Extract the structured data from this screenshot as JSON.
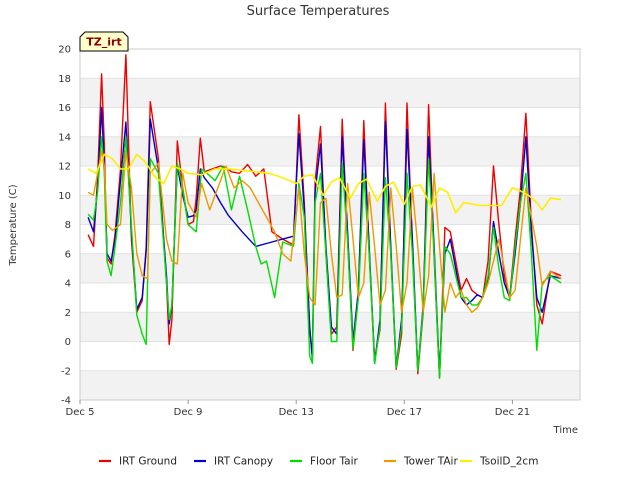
{
  "chart_data": {
    "type": "line",
    "title": "Surface Temperatures",
    "xlabel": "Time",
    "ylabel": "Temperature (C)",
    "site_label": "TZ_irt",
    "xlim": [
      5,
      23.5
    ],
    "ylim": [
      -4,
      20
    ],
    "x_ticks": [
      5,
      9,
      13,
      17,
      21
    ],
    "x_tick_labels": [
      "Dec 5",
      "Dec 9",
      "Dec 13",
      "Dec 17",
      "Dec 21"
    ],
    "y_ticks": [
      -4,
      -2,
      0,
      2,
      4,
      6,
      8,
      10,
      12,
      14,
      16,
      18,
      20
    ],
    "grid": true,
    "legend_position": "bottom",
    "series": [
      {
        "name": "IRT Ground",
        "color": "#ee0000",
        "x": [
          5.3,
          5.5,
          5.65,
          5.8,
          5.9,
          6.0,
          6.15,
          6.3,
          6.5,
          6.7,
          6.9,
          7.1,
          7.3,
          7.45,
          7.6,
          7.9,
          8.2,
          8.3,
          8.4,
          8.6,
          8.8,
          9.0,
          9.2,
          9.3,
          9.45,
          9.6,
          9.9,
          10.2,
          10.4,
          10.6,
          10.9,
          11.2,
          11.5,
          11.8,
          12.1,
          12.5,
          12.9,
          13.1,
          13.3,
          13.5,
          13.6,
          13.7,
          13.9,
          14.1,
          14.3,
          14.5,
          14.7,
          14.9,
          15.1,
          15.3,
          15.5,
          15.7,
          15.9,
          16.1,
          16.3,
          16.5,
          16.7,
          16.9,
          17.1,
          17.3,
          17.5,
          17.7,
          17.9,
          18.1,
          18.3,
          18.5,
          18.7,
          18.9,
          19.1,
          19.3,
          19.5,
          19.7,
          19.9,
          20.1,
          20.3,
          20.5,
          20.7,
          20.9,
          21.1,
          21.3,
          21.5,
          21.7,
          21.9,
          22.1,
          22.4,
          22.8
        ],
        "y": [
          7.3,
          6.5,
          11.2,
          18.3,
          13.5,
          5.7,
          5.3,
          7.4,
          11.8,
          19.6,
          7.0,
          2.0,
          2.8,
          6.5,
          16.4,
          12.5,
          4.0,
          -0.2,
          1.5,
          13.7,
          10.5,
          8.0,
          8.2,
          9.8,
          13.9,
          11.6,
          11.8,
          12.0,
          11.9,
          11.6,
          11.5,
          12.1,
          11.3,
          11.8,
          7.5,
          7.0,
          6.6,
          15.5,
          9.5,
          0.8,
          -1.0,
          10.9,
          14.7,
          6.0,
          0.5,
          1.0,
          15.2,
          7.0,
          -0.6,
          3.2,
          15.1,
          6.0,
          -1.2,
          0.8,
          16.3,
          6.0,
          -1.9,
          0.5,
          16.3,
          6.5,
          -2.2,
          2.0,
          16.2,
          5.8,
          -2.5,
          7.8,
          7.5,
          5.5,
          3.5,
          4.3,
          3.5,
          3.2,
          3.0,
          5.5,
          12.0,
          8.0,
          4.5,
          3.0,
          7.0,
          10.5,
          15.6,
          8.0,
          2.5,
          1.2,
          4.8,
          4.5
        ]
      },
      {
        "name": "IRT Canopy",
        "color": "#0000cc",
        "x": [
          5.3,
          5.5,
          5.65,
          5.8,
          5.9,
          6.0,
          6.15,
          6.3,
          6.5,
          6.7,
          6.9,
          7.1,
          7.3,
          7.45,
          7.6,
          7.9,
          8.2,
          8.3,
          8.4,
          8.6,
          8.8,
          9.0,
          9.2,
          9.3,
          9.45,
          9.6,
          9.9,
          10.2,
          10.5,
          11.0,
          11.5,
          12.1,
          12.5,
          12.9,
          13.1,
          13.3,
          13.5,
          13.6,
          13.7,
          13.9,
          14.1,
          14.3,
          14.5,
          14.7,
          14.9,
          15.1,
          15.3,
          15.5,
          15.7,
          15.9,
          16.1,
          16.3,
          16.5,
          16.7,
          16.9,
          17.1,
          17.3,
          17.5,
          17.7,
          17.9,
          18.1,
          18.3,
          18.5,
          18.7,
          18.9,
          19.1,
          19.3,
          19.5,
          19.7,
          19.9,
          20.1,
          20.3,
          20.5,
          20.7,
          20.9,
          21.1,
          21.3,
          21.5,
          21.7,
          21.9,
          22.1,
          22.4,
          22.8
        ],
        "y": [
          8.5,
          7.5,
          10.5,
          16.0,
          12.0,
          6.0,
          5.5,
          7.0,
          11.0,
          15.0,
          7.5,
          2.2,
          3.0,
          6.2,
          15.2,
          11.8,
          4.5,
          1.2,
          2.5,
          12.0,
          10.0,
          8.5,
          8.6,
          9.0,
          11.8,
          11.2,
          10.5,
          9.5,
          8.6,
          7.5,
          6.5,
          6.8,
          7.0,
          7.2,
          14.2,
          9.0,
          1.0,
          -1.2,
          10.2,
          13.5,
          6.5,
          1.0,
          0.5,
          14.0,
          7.5,
          0.0,
          3.5,
          13.8,
          6.5,
          -1.5,
          1.5,
          15.0,
          6.5,
          -1.8,
          1.5,
          14.5,
          7.0,
          -2.0,
          2.5,
          14.0,
          6.5,
          -2.3,
          6.0,
          7.0,
          5.0,
          3.0,
          2.5,
          2.8,
          3.2,
          3.0,
          4.2,
          8.2,
          6.0,
          4.0,
          3.0,
          6.0,
          9.5,
          14.0,
          7.5,
          3.0,
          2.0,
          4.5,
          4.3
        ]
      },
      {
        "name": "Floor Tair",
        "color": "#00dd00",
        "x": [
          5.3,
          5.5,
          5.65,
          5.8,
          5.9,
          6.0,
          6.15,
          6.3,
          6.5,
          6.7,
          6.9,
          7.1,
          7.3,
          7.45,
          7.6,
          7.9,
          8.2,
          8.3,
          8.4,
          8.6,
          8.8,
          9.0,
          9.3,
          9.5,
          9.7,
          10.0,
          10.3,
          10.6,
          10.9,
          11.2,
          11.5,
          11.7,
          11.9,
          12.2,
          12.5,
          12.9,
          13.1,
          13.3,
          13.5,
          13.6,
          13.7,
          13.9,
          14.1,
          14.3,
          14.5,
          14.7,
          14.9,
          15.1,
          15.3,
          15.5,
          15.7,
          15.9,
          16.1,
          16.3,
          16.5,
          16.7,
          16.9,
          17.1,
          17.3,
          17.5,
          17.7,
          17.9,
          18.1,
          18.3,
          18.5,
          18.7,
          18.9,
          19.1,
          19.3,
          19.5,
          19.7,
          19.9,
          20.1,
          20.3,
          20.5,
          20.7,
          20.9,
          21.1,
          21.3,
          21.5,
          21.7,
          21.9,
          22.1,
          22.4,
          22.8
        ],
        "y": [
          8.7,
          8.3,
          10.2,
          14.0,
          11.5,
          5.5,
          4.5,
          6.5,
          9.5,
          14.0,
          8.0,
          1.8,
          0.5,
          -0.2,
          12.5,
          11.5,
          4.0,
          1.5,
          2.5,
          12.2,
          10.5,
          8.0,
          7.5,
          11.8,
          11.5,
          11.0,
          12.0,
          9.0,
          11.3,
          9.0,
          6.5,
          5.3,
          5.5,
          3.0,
          6.8,
          6.5,
          10.8,
          8.5,
          -1.0,
          -1.5,
          9.5,
          11.5,
          6.0,
          0.0,
          0.0,
          12.2,
          6.8,
          -0.5,
          3.0,
          11.5,
          6.0,
          -1.5,
          1.0,
          11.2,
          6.0,
          -1.8,
          1.0,
          11.5,
          6.0,
          -2.0,
          2.2,
          12.5,
          6.0,
          -2.5,
          6.5,
          6.0,
          4.5,
          3.0,
          3.0,
          2.5,
          2.5,
          3.0,
          4.5,
          7.8,
          5.0,
          3.0,
          2.8,
          6.5,
          9.5,
          11.5,
          6.0,
          -0.6,
          4.0,
          4.5,
          4.0
        ]
      },
      {
        "name": "Tower TAir",
        "color": "#ee9900",
        "x": [
          5.3,
          5.5,
          5.65,
          5.8,
          5.9,
          6.0,
          6.2,
          6.5,
          6.7,
          6.9,
          7.1,
          7.3,
          7.5,
          7.6,
          7.9,
          8.2,
          8.4,
          8.6,
          8.8,
          9.0,
          9.3,
          9.5,
          9.8,
          10.1,
          10.4,
          10.7,
          11.0,
          11.3,
          11.6,
          11.9,
          12.2,
          12.5,
          12.8,
          13.1,
          13.3,
          13.5,
          13.7,
          13.9,
          14.1,
          14.3,
          14.5,
          14.7,
          14.9,
          15.1,
          15.3,
          15.5,
          15.7,
          15.9,
          16.1,
          16.3,
          16.5,
          16.7,
          16.9,
          17.1,
          17.3,
          17.5,
          17.7,
          17.9,
          18.1,
          18.3,
          18.5,
          18.7,
          18.9,
          19.1,
          19.3,
          19.5,
          19.7,
          19.9,
          20.1,
          20.3,
          20.5,
          20.7,
          20.9,
          21.1,
          21.3,
          21.5,
          21.7,
          21.9,
          22.1,
          22.4,
          22.8
        ],
        "y": [
          10.2,
          10.0,
          11.5,
          13.0,
          12.0,
          8.0,
          7.6,
          8.0,
          13.0,
          10.5,
          6.0,
          4.5,
          4.3,
          11.5,
          12.2,
          7.0,
          5.5,
          5.3,
          11.5,
          9.5,
          8.5,
          10.8,
          9.0,
          10.5,
          12.0,
          10.5,
          11.0,
          10.5,
          9.5,
          8.5,
          7.5,
          6.0,
          5.5,
          10.5,
          6.0,
          3.0,
          2.5,
          9.5,
          9.8,
          6.0,
          3.0,
          3.2,
          10.8,
          7.0,
          3.0,
          4.0,
          10.2,
          6.5,
          2.5,
          3.5,
          10.5,
          6.5,
          2.0,
          4.0,
          10.5,
          6.5,
          2.0,
          4.5,
          11.5,
          6.5,
          2.0,
          4.0,
          3.0,
          3.5,
          2.5,
          2.0,
          2.3,
          3.0,
          4.0,
          5.5,
          7.0,
          5.0,
          3.0,
          3.5,
          7.0,
          10.5,
          8.5,
          6.5,
          3.8,
          4.8,
          4.3
        ]
      },
      {
        "name": "TsoilD_2cm",
        "color": "#ffee00",
        "x": [
          5.3,
          5.6,
          5.9,
          6.2,
          6.5,
          6.8,
          7.1,
          7.4,
          7.8,
          8.1,
          8.4,
          8.7,
          9.0,
          9.5,
          10.0,
          10.5,
          11.0,
          11.5,
          12.0,
          12.5,
          13.0,
          13.3,
          13.6,
          14.0,
          14.3,
          14.6,
          15.0,
          15.3,
          15.6,
          16.0,
          16.3,
          16.6,
          17.0,
          17.3,
          17.6,
          18.0,
          18.3,
          18.6,
          18.9,
          19.2,
          19.5,
          19.8,
          20.2,
          20.6,
          21.0,
          21.3,
          21.6,
          21.9,
          22.1,
          22.4,
          22.8
        ],
        "y": [
          11.8,
          11.5,
          12.8,
          12.5,
          11.8,
          11.8,
          12.8,
          12.3,
          11.2,
          10.8,
          12.0,
          11.8,
          11.5,
          11.4,
          11.8,
          11.8,
          11.7,
          11.6,
          11.5,
          11.2,
          10.8,
          11.3,
          11.4,
          10.0,
          10.9,
          11.2,
          9.8,
          10.8,
          11.1,
          9.6,
          10.6,
          10.9,
          9.4,
          10.6,
          10.7,
          9.2,
          10.5,
          10.2,
          8.8,
          9.5,
          9.4,
          9.3,
          9.3,
          9.3,
          10.5,
          10.3,
          10.0,
          9.5,
          9.0,
          9.8,
          9.7
        ]
      }
    ]
  }
}
